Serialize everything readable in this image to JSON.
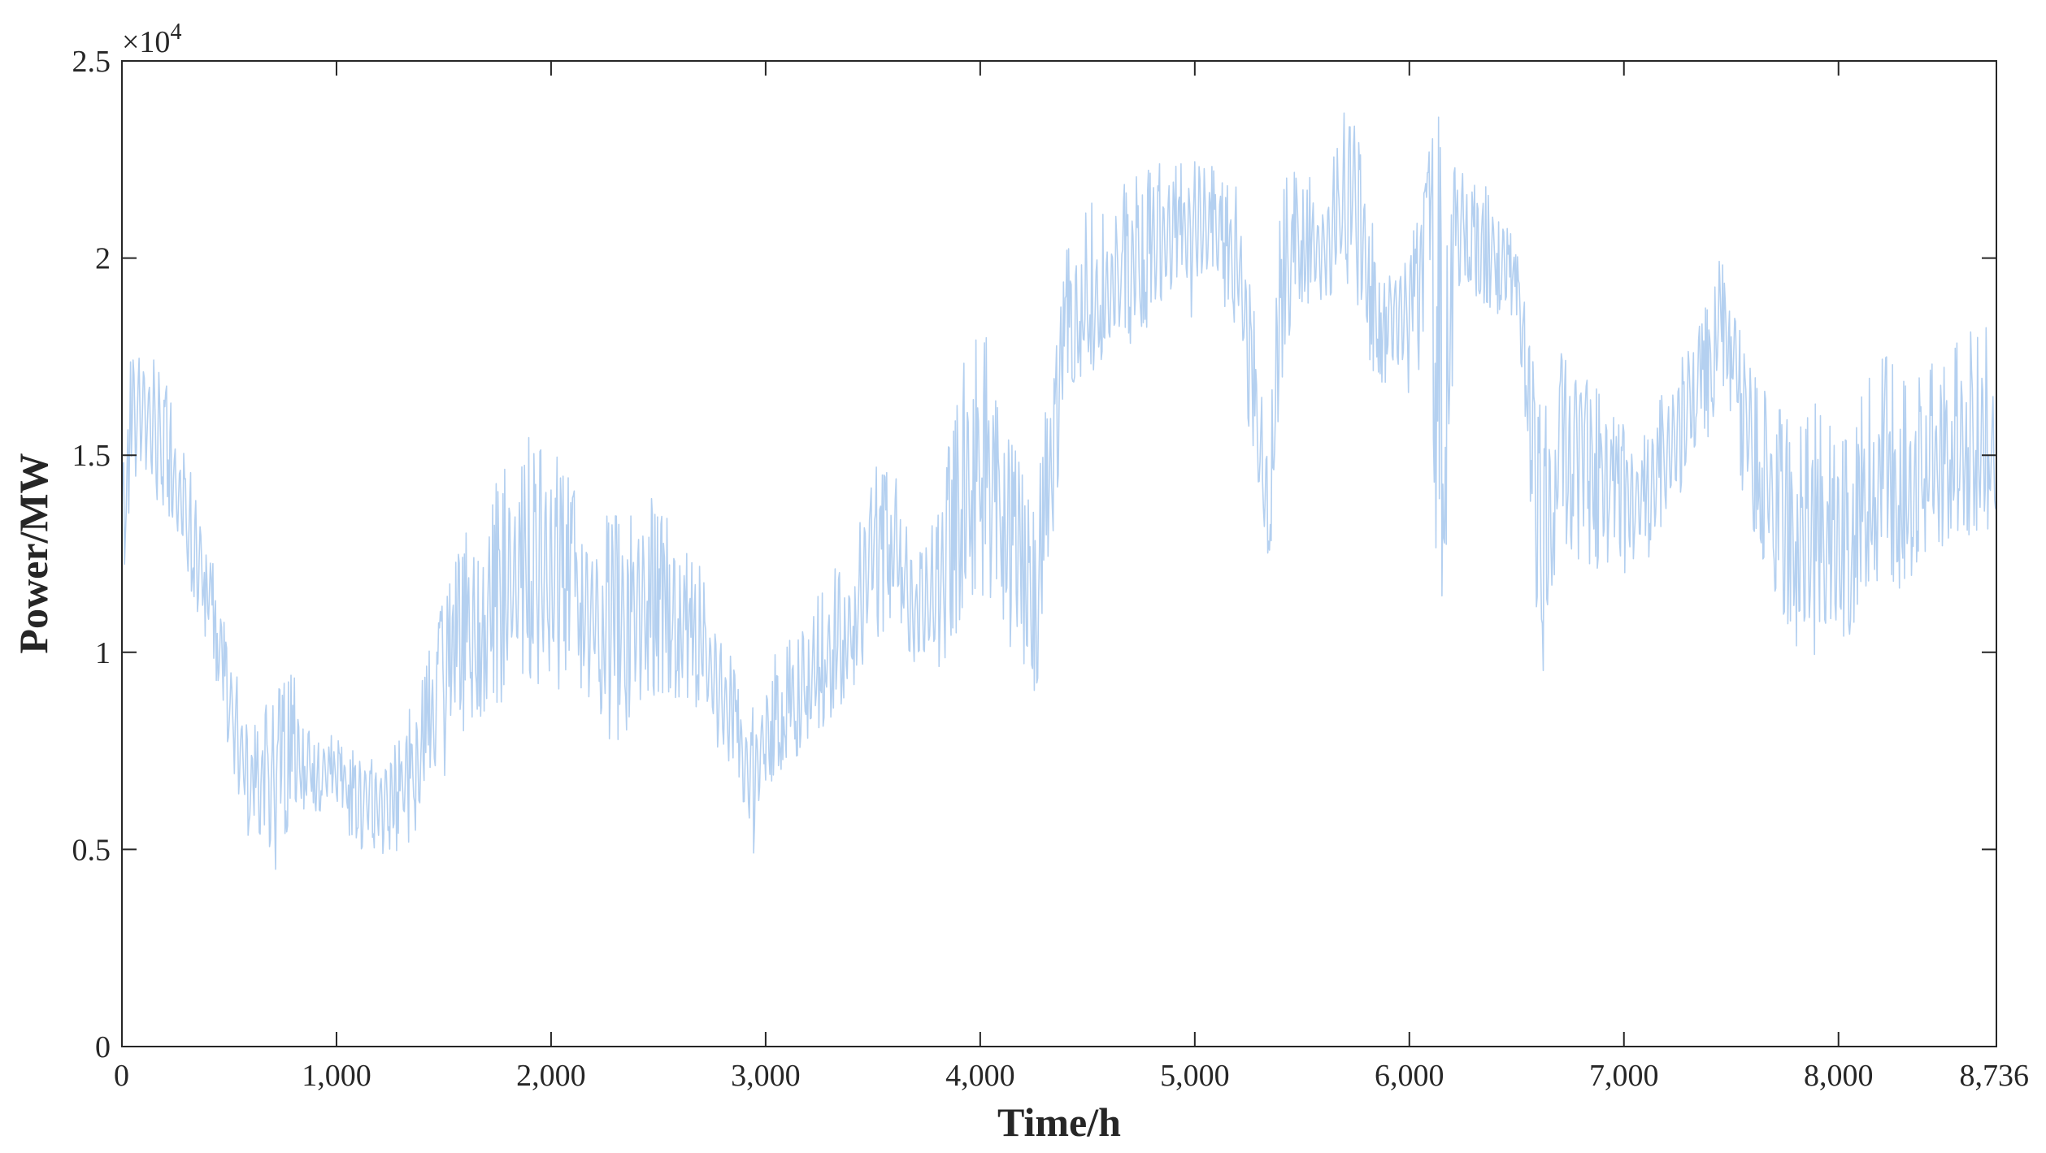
{
  "chart_data": {
    "type": "line",
    "xlabel": "Time/h",
    "ylabel": "Power/MW",
    "xlim": [
      0,
      8736
    ],
    "ylim": [
      0,
      25000
    ],
    "x_ticks": [
      0,
      1000,
      2000,
      3000,
      4000,
      5000,
      6000,
      7000,
      8000,
      8736
    ],
    "x_tick_labels": [
      "0",
      "1,000",
      "2,000",
      "3,000",
      "4,000",
      "5,000",
      "6,000",
      "7,000",
      "8,000",
      "8,736"
    ],
    "y_ticks": [
      0,
      5000,
      10000,
      15000,
      20000,
      25000
    ],
    "y_tick_labels": [
      "0",
      "0.5",
      "1",
      "1.5",
      "2",
      "2.5"
    ],
    "y_exponent_base": "×10",
    "y_exponent_power": "4",
    "grid": false,
    "series": [
      {
        "color": "#b4d0f0",
        "x": [
          0,
          50,
          100,
          200,
          300,
          400,
          500,
          600,
          700,
          800,
          900,
          1000,
          1100,
          1200,
          1300,
          1400,
          1500,
          1600,
          1700,
          1800,
          1900,
          2000,
          2100,
          2200,
          2300,
          2400,
          2500,
          2600,
          2700,
          2800,
          2900,
          2950,
          3000,
          3100,
          3200,
          3300,
          3400,
          3500,
          3600,
          3700,
          3800,
          3900,
          4000,
          4100,
          4200,
          4250,
          4300,
          4350,
          4400,
          4500,
          4600,
          4700,
          4800,
          4900,
          5000,
          5100,
          5200,
          5300,
          5350,
          5400,
          5500,
          5600,
          5700,
          5750,
          5800,
          5850,
          5900,
          6000,
          6050,
          6100,
          6130,
          6160,
          6200,
          6250,
          6300,
          6400,
          6500,
          6550,
          6600,
          6650,
          6700,
          6800,
          6900,
          7000,
          7100,
          7200,
          7300,
          7400,
          7450,
          7500,
          7550,
          7600,
          7700,
          7800,
          7900,
          8000,
          8100,
          8200,
          8300,
          8400,
          8500,
          8600,
          8700,
          8736
        ],
        "mean": [
          13500,
          16000,
          16200,
          15200,
          13200,
          11800,
          8800,
          6500,
          6800,
          7000,
          7200,
          6800,
          6500,
          6200,
          6500,
          7200,
          8800,
          10200,
          11000,
          11400,
          11800,
          11800,
          11500,
          10800,
          10500,
          11200,
          11400,
          10800,
          10000,
          8800,
          7200,
          6800,
          8200,
          8400,
          9200,
          10000,
          10500,
          12500,
          12800,
          11000,
          11200,
          13500,
          14500,
          13500,
          12000,
          10500,
          12500,
          15500,
          18200,
          18500,
          19000,
          19500,
          20200,
          20500,
          20800,
          20600,
          20000,
          15000,
          13000,
          19000,
          20500,
          20200,
          21000,
          21800,
          19800,
          18500,
          18800,
          18600,
          19500,
          20000,
          16000,
          14000,
          20000,
          21000,
          20800,
          20200,
          19200,
          17500,
          12500,
          12000,
          15500,
          16000,
          14500,
          14200,
          13800,
          14800,
          16500,
          17500,
          18500,
          18000,
          16500,
          15200,
          14000,
          12800,
          12300,
          12200,
          13200,
          14200,
          13600,
          14400,
          14800,
          15200,
          15000,
          14800
        ],
        "high": [
          15000,
          18200,
          18200,
          17000,
          15000,
          13000,
          10300,
          8000,
          9000,
          9500,
          8500,
          7800,
          7600,
          7200,
          8000,
          9500,
          11500,
          13000,
          14000,
          14800,
          15500,
          15600,
          14200,
          13800,
          13500,
          14200,
          13800,
          13000,
          12200,
          10800,
          8600,
          8600,
          9500,
          10500,
          11500,
          12000,
          12500,
          14800,
          14600,
          12500,
          13500,
          17000,
          18800,
          16200,
          14800,
          13500,
          16000,
          17500,
          20500,
          21500,
          21000,
          22300,
          22500,
          22700,
          22700,
          22400,
          21800,
          18000,
          15500,
          22000,
          22600,
          21500,
          23800,
          23500,
          22000,
          20500,
          20000,
          20600,
          21500,
          23000,
          24000,
          22000,
          22200,
          22800,
          22000,
          21800,
          20200,
          19000,
          16500,
          16800,
          17600,
          17500,
          16500,
          15800,
          15500,
          17000,
          17800,
          19000,
          20200,
          19800,
          18000,
          17200,
          16500,
          15500,
          16500,
          15500,
          16500,
          17800,
          17000,
          17500,
          17800,
          18500,
          18200,
          17000
        ],
        "low": [
          11000,
          14500,
          14000,
          13500,
          12000,
          10000,
          7500,
          5000,
          4200,
          5800,
          6000,
          5500,
          5000,
          4800,
          4800,
          5800,
          6500,
          8000,
          8500,
          8800,
          9000,
          9000,
          9200,
          8700,
          7200,
          8500,
          9000,
          8800,
          8500,
          7000,
          5500,
          4700,
          6500,
          7200,
          7500,
          8300,
          8800,
          9800,
          11000,
          9500,
          9200,
          10500,
          11500,
          10500,
          9500,
          8800,
          10000,
          12500,
          16500,
          17000,
          17500,
          17800,
          18200,
          18300,
          18500,
          18800,
          18000,
          13000,
          12200,
          16500,
          18500,
          18800,
          19200,
          19000,
          17000,
          16800,
          16800,
          16500,
          17200,
          17000,
          11500,
          11200,
          16000,
          19500,
          19000,
          18600,
          17500,
          15500,
          8800,
          10200,
          13000,
          12000,
          12000,
          12000,
          12000,
          12500,
          14800,
          15500,
          16800,
          16000,
          14000,
          13000,
          11500,
          10000,
          9800,
          9800,
          11000,
          12000,
          11500,
          12500,
          12700,
          13000,
          12700,
          13500
        ]
      }
    ]
  }
}
